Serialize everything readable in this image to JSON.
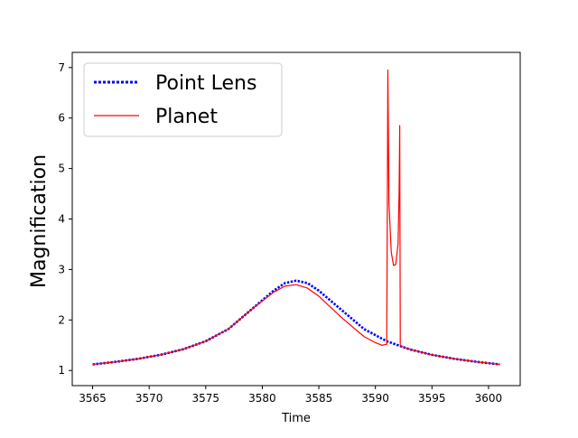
{
  "chart_data": {
    "type": "line",
    "xlabel": "Time",
    "ylabel": "Magnification",
    "xlim": [
      3563.2,
      3602.8
    ],
    "ylim": [
      0.7,
      7.3
    ],
    "xticks": [
      3565,
      3570,
      3575,
      3580,
      3585,
      3590,
      3595,
      3600
    ],
    "yticks": [
      1,
      2,
      3,
      4,
      5,
      6,
      7
    ],
    "grid": false,
    "legend_position": "top-left",
    "series": [
      {
        "name": "Point Lens",
        "color": "#0000ff",
        "style": "dotted",
        "x": [
          3565,
          3567,
          3569,
          3571,
          3573,
          3575,
          3577,
          3579,
          3581,
          3582,
          3583,
          3584,
          3585,
          3587,
          3589,
          3591,
          3593,
          3595,
          3597,
          3599,
          3601
        ],
        "y": [
          1.12,
          1.17,
          1.23,
          1.31,
          1.42,
          1.58,
          1.82,
          2.2,
          2.58,
          2.73,
          2.78,
          2.73,
          2.58,
          2.2,
          1.82,
          1.58,
          1.42,
          1.31,
          1.23,
          1.17,
          1.12
        ]
      },
      {
        "name": "Planet",
        "color": "#ff0000",
        "style": "solid",
        "x": [
          3565,
          3567,
          3569,
          3571,
          3573,
          3575,
          3577,
          3579,
          3581,
          3582,
          3583,
          3584,
          3585,
          3587,
          3589,
          3590,
          3590.6,
          3591.0,
          3591.05,
          3591.1,
          3591.2,
          3591.4,
          3591.6,
          3591.8,
          3592.0,
          3592.1,
          3592.15,
          3592.2,
          3592.3,
          3593,
          3595,
          3597,
          3599,
          3601
        ],
        "y": [
          1.12,
          1.17,
          1.23,
          1.31,
          1.42,
          1.58,
          1.82,
          2.2,
          2.55,
          2.67,
          2.7,
          2.63,
          2.47,
          2.05,
          1.67,
          1.55,
          1.5,
          1.52,
          4.0,
          6.95,
          4.3,
          3.35,
          3.08,
          3.1,
          3.5,
          4.6,
          5.85,
          1.5,
          1.48,
          1.42,
          1.31,
          1.23,
          1.17,
          1.12
        ]
      }
    ]
  }
}
